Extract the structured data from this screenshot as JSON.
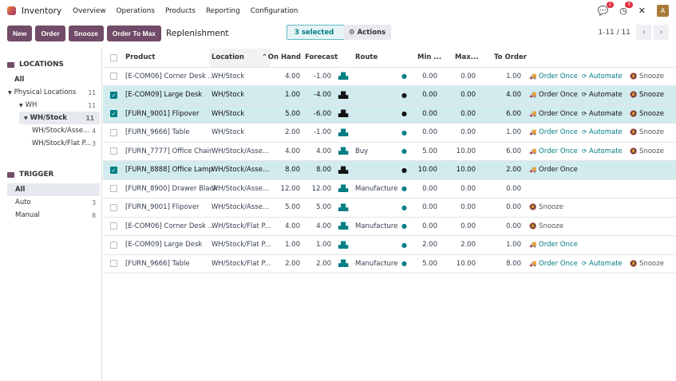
{
  "nav": {
    "app": "Inventory",
    "menus": [
      "Overview",
      "Operations",
      "Products",
      "Reporting",
      "Configuration"
    ],
    "chat_badge": "2",
    "activity_badge": "3",
    "avatar": "A"
  },
  "control": {
    "buttons": [
      "New",
      "Order",
      "Snooze",
      "Order To Max"
    ],
    "title": "Replenishment",
    "selected": "3 selected",
    "actions": "Actions",
    "pager": "1-11 / 11"
  },
  "sidebar": {
    "locations_title": "LOCATIONS",
    "locations": [
      {
        "label": "All",
        "count": ""
      },
      {
        "label": "Physical Locations",
        "count": "11"
      },
      {
        "label": "WH",
        "count": "11"
      },
      {
        "label": "WH/Stock",
        "count": "11"
      },
      {
        "label": "WH/Stock/Asse...",
        "count": "4"
      },
      {
        "label": "WH/Stock/Flat P...",
        "count": "3"
      }
    ],
    "trigger_title": "TRIGGER",
    "triggers": [
      {
        "label": "All",
        "count": ""
      },
      {
        "label": "Auto",
        "count": "3"
      },
      {
        "label": "Manual",
        "count": "8"
      }
    ]
  },
  "table": {
    "headers": [
      "Product",
      "Location",
      "On Hand",
      "Forecast",
      "Route",
      "Min ...",
      "Max...",
      "To Order"
    ],
    "action_labels": {
      "order": "Order Once",
      "automate": "Automate",
      "snooze": "Snooze"
    },
    "rows": [
      {
        "product": "[E-COM06] Corner Desk ...",
        "location": "WH/Stock",
        "onhand": "4.00",
        "forecast": "-1.00",
        "route": "",
        "min": "0.00",
        "max": "0.00",
        "toorder": "1.00",
        "selected": false,
        "actions": [
          "order",
          "automate",
          "snooze"
        ]
      },
      {
        "product": "[E-COM09] Large Desk",
        "location": "WH/Stock",
        "onhand": "1.00",
        "forecast": "-4.00",
        "route": "",
        "min": "0.00",
        "max": "0.00",
        "toorder": "4.00",
        "selected": true,
        "actions": [
          "order",
          "automate",
          "snooze"
        ]
      },
      {
        "product": "[FURN_9001] Flipover",
        "location": "WH/Stock",
        "onhand": "5.00",
        "forecast": "-6.00",
        "route": "",
        "min": "0.00",
        "max": "0.00",
        "toorder": "6.00",
        "selected": true,
        "actions": [
          "order",
          "automate",
          "snooze"
        ]
      },
      {
        "product": "[FURN_9666] Table",
        "location": "WH/Stock",
        "onhand": "2.00",
        "forecast": "-1.00",
        "route": "",
        "min": "0.00",
        "max": "0.00",
        "toorder": "1.00",
        "selected": false,
        "actions": [
          "order",
          "automate",
          "snooze"
        ]
      },
      {
        "product": "[FURN_7777] Office Chair",
        "location": "WH/Stock/Asse...",
        "onhand": "4.00",
        "forecast": "4.00",
        "route": "Buy",
        "min": "5.00",
        "max": "10.00",
        "toorder": "6.00",
        "selected": false,
        "actions": [
          "order",
          "automate",
          "snooze"
        ]
      },
      {
        "product": "[FURN_8888] Office Lamp",
        "location": "WH/Stock/Asse...",
        "onhand": "8.00",
        "forecast": "8.00",
        "route": "",
        "min": "10.00",
        "max": "10.00",
        "toorder": "2.00",
        "selected": true,
        "actions": [
          "order"
        ]
      },
      {
        "product": "[FURN_8900] Drawer Black",
        "location": "WH/Stock/Asse...",
        "onhand": "12.00",
        "forecast": "12.00",
        "route": "Manufacture",
        "min": "0.00",
        "max": "0.00",
        "toorder": "0.00",
        "selected": false,
        "actions": []
      },
      {
        "product": "[FURN_9001] Flipover",
        "location": "WH/Stock/Asse...",
        "onhand": "5.00",
        "forecast": "5.00",
        "route": "",
        "min": "0.00",
        "max": "0.00",
        "toorder": "0.00",
        "selected": false,
        "actions": [
          "snooze"
        ]
      },
      {
        "product": "[E-COM06] Corner Desk ...",
        "location": "WH/Stock/Flat P...",
        "onhand": "4.00",
        "forecast": "4.00",
        "route": "Manufacture",
        "min": "0.00",
        "max": "0.00",
        "toorder": "0.00",
        "selected": false,
        "actions": [
          "snooze"
        ]
      },
      {
        "product": "[E-COM09] Large Desk",
        "location": "WH/Stock/Flat P...",
        "onhand": "1.00",
        "forecast": "1.00",
        "route": "",
        "min": "2.00",
        "max": "2.00",
        "toorder": "1.00",
        "selected": false,
        "actions": [
          "order"
        ]
      },
      {
        "product": "[FURN_9666] Table",
        "location": "WH/Stock/Flat P...",
        "onhand": "2.00",
        "forecast": "2.00",
        "route": "Manufacture",
        "min": "5.00",
        "max": "10.00",
        "toorder": "8.00",
        "selected": false,
        "actions": [
          "order",
          "automate",
          "snooze"
        ]
      }
    ]
  },
  "colors": {
    "brand": "#714b67",
    "accent": "#017e84",
    "selected_row": "#d1ebee"
  }
}
